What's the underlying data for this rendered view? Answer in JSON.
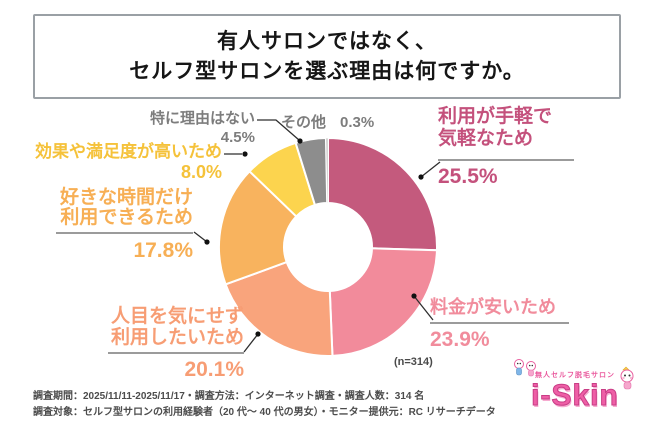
{
  "title": {
    "line1": "有人サロンではなく、",
    "line2": "セルフ型サロンを選ぶ理由は何ですか。"
  },
  "chart_data": {
    "type": "pie",
    "subtype": "donut",
    "title": "有人サロンではなく、セルフ型サロンを選ぶ理由は何ですか。",
    "sample_label": "(n=314)",
    "start_angle_deg": 0,
    "direction": "clockwise",
    "legend_position": "callout-labels",
    "segments": [
      {
        "label": "利用が手軽で気軽なため",
        "value": 25.5,
        "color": "#c45a7d"
      },
      {
        "label": "料金が安いため",
        "value": 23.9,
        "color": "#f28b9b"
      },
      {
        "label": "人目を気にせず利用したいため",
        "value": 20.1,
        "color": "#f9a47c"
      },
      {
        "label": "好きな時間だけ利用できるため",
        "value": 17.8,
        "color": "#f8b35e"
      },
      {
        "label": "効果や満足度が高いため",
        "value": 8.0,
        "color": "#fcd44e"
      },
      {
        "label": "特に理由はない",
        "value": 4.5,
        "color": "#8d8d8d"
      },
      {
        "label": "その他",
        "value": 0.3,
        "color": "#c4c3c3"
      }
    ]
  },
  "callouts": {
    "tegaru": {
      "line1": "利用が手軽で",
      "line2": "気軽なため",
      "pct": "25.5%"
    },
    "ryokin": {
      "label": "料金が安いため",
      "pct": "23.9%"
    },
    "hitome": {
      "line1": "人目を気にせず",
      "line2": "利用したいため",
      "pct": "20.1%"
    },
    "jikan": {
      "line1": "好きな時間だけ",
      "line2": "利用できるため",
      "pct": "17.8%"
    },
    "kouka": {
      "label": "効果や満足度が高いため",
      "pct": "8.0%"
    },
    "tokuni": {
      "label": "特に理由はない",
      "pct": "4.5%"
    },
    "sonota": {
      "label": "その他",
      "pct": "0.3%"
    }
  },
  "notes": {
    "line1": "調査期間：2025/11/11-2025/11/17・調査方法：インターネット調査・調査人数：314 名",
    "line2": "調査対象：セルフ型サロンの利用経験者（20 代～ 40 代の男女）・モニター提供元：RC リサーチデータ"
  },
  "logo": {
    "tagline": "無人セルフ脱毛サロン",
    "brand": "i-Skin"
  },
  "colors": {
    "accent_dark_pink": "#c45a7d",
    "accent_light_pink": "#f28b9b",
    "accent_salmon": "#f9a47c",
    "accent_orange": "#f8b35e",
    "accent_yellow": "#fcd44e",
    "accent_gray": "#8d8d8d",
    "leader_line": "#2e2e2e",
    "title_border": "#9aa0a5",
    "brand_pink": "#ee5fa6"
  }
}
